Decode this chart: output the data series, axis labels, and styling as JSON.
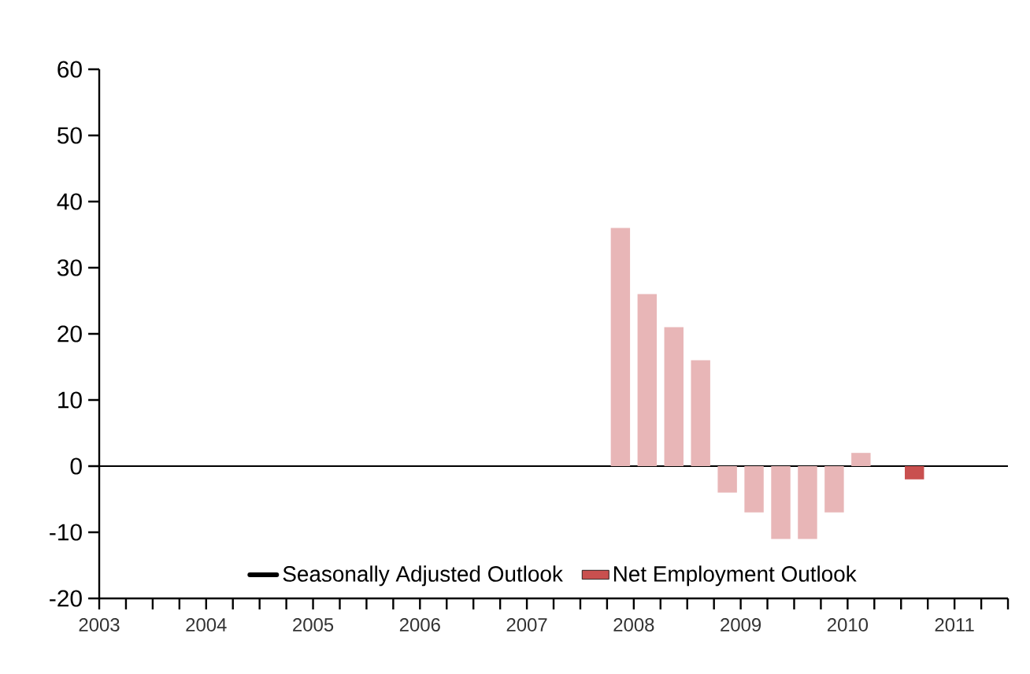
{
  "chart_data": {
    "type": "bar",
    "x": [
      2008.375,
      2008.625,
      2008.875,
      2009.125,
      2009.375,
      2009.625,
      2009.875,
      2010.125,
      2010.375,
      2010.625,
      2011.125
    ],
    "series": [
      {
        "name": "Seasonally Adjusted Outlook",
        "type": "line",
        "color": "#000000",
        "values": [
          null,
          null,
          null,
          null,
          null,
          null,
          null,
          null,
          null,
          null,
          null
        ]
      },
      {
        "name": "Net Employment Outlook",
        "color": "#c9504f",
        "colors": [
          "#e8b6b7",
          "#e8b6b7",
          "#e8b6b7",
          "#e8b6b7",
          "#e8b6b7",
          "#e8b6b7",
          "#e8b6b7",
          "#e8b6b7",
          "#e8b6b7",
          "#e8b6b7",
          "#c9504f"
        ],
        "values": [
          36,
          26,
          21,
          16,
          -4,
          -7,
          -11,
          -11,
          -7,
          2,
          -2
        ]
      }
    ],
    "xlim": [
      2003.5,
      2012.0
    ],
    "xticks": [
      {
        "value": 2003.5,
        "label": "2003"
      },
      {
        "value": 2003.75,
        "label": null
      },
      {
        "value": 2004,
        "label": null
      },
      {
        "value": 2004.25,
        "label": null
      },
      {
        "value": 2004.5,
        "label": "2004"
      },
      {
        "value": 2004.75,
        "label": null
      },
      {
        "value": 2005,
        "label": null
      },
      {
        "value": 2005.25,
        "label": null
      },
      {
        "value": 2005.5,
        "label": "2005"
      },
      {
        "value": 2005.75,
        "label": null
      },
      {
        "value": 2006,
        "label": null
      },
      {
        "value": 2006.25,
        "label": null
      },
      {
        "value": 2006.5,
        "label": "2006"
      },
      {
        "value": 2006.75,
        "label": null
      },
      {
        "value": 2007,
        "label": null
      },
      {
        "value": 2007.25,
        "label": null
      },
      {
        "value": 2007.5,
        "label": "2007"
      },
      {
        "value": 2007.75,
        "label": null
      },
      {
        "value": 2008,
        "label": null
      },
      {
        "value": 2008.25,
        "label": null
      },
      {
        "value": 2008.5,
        "label": "2008"
      },
      {
        "value": 2008.75,
        "label": null
      },
      {
        "value": 2009,
        "label": null
      },
      {
        "value": 2009.25,
        "label": null
      },
      {
        "value": 2009.5,
        "label": "2009"
      },
      {
        "value": 2009.75,
        "label": null
      },
      {
        "value": 2010,
        "label": null
      },
      {
        "value": 2010.25,
        "label": null
      },
      {
        "value": 2010.5,
        "label": "2010"
      },
      {
        "value": 2010.75,
        "label": null
      },
      {
        "value": 2011,
        "label": null
      },
      {
        "value": 2011.25,
        "label": null
      },
      {
        "value": 2011.5,
        "label": "2011"
      },
      {
        "value": 2011.75,
        "label": null
      },
      {
        "value": 2012,
        "label": null
      }
    ],
    "ylim": [
      -20,
      60
    ],
    "yticks": [
      -20,
      -10,
      0,
      10,
      20,
      30,
      40,
      50,
      60
    ],
    "ref_lines": [
      {
        "axis": "y",
        "value": 0,
        "color": "#000000"
      }
    ],
    "grid": false,
    "legend": "bottom"
  }
}
